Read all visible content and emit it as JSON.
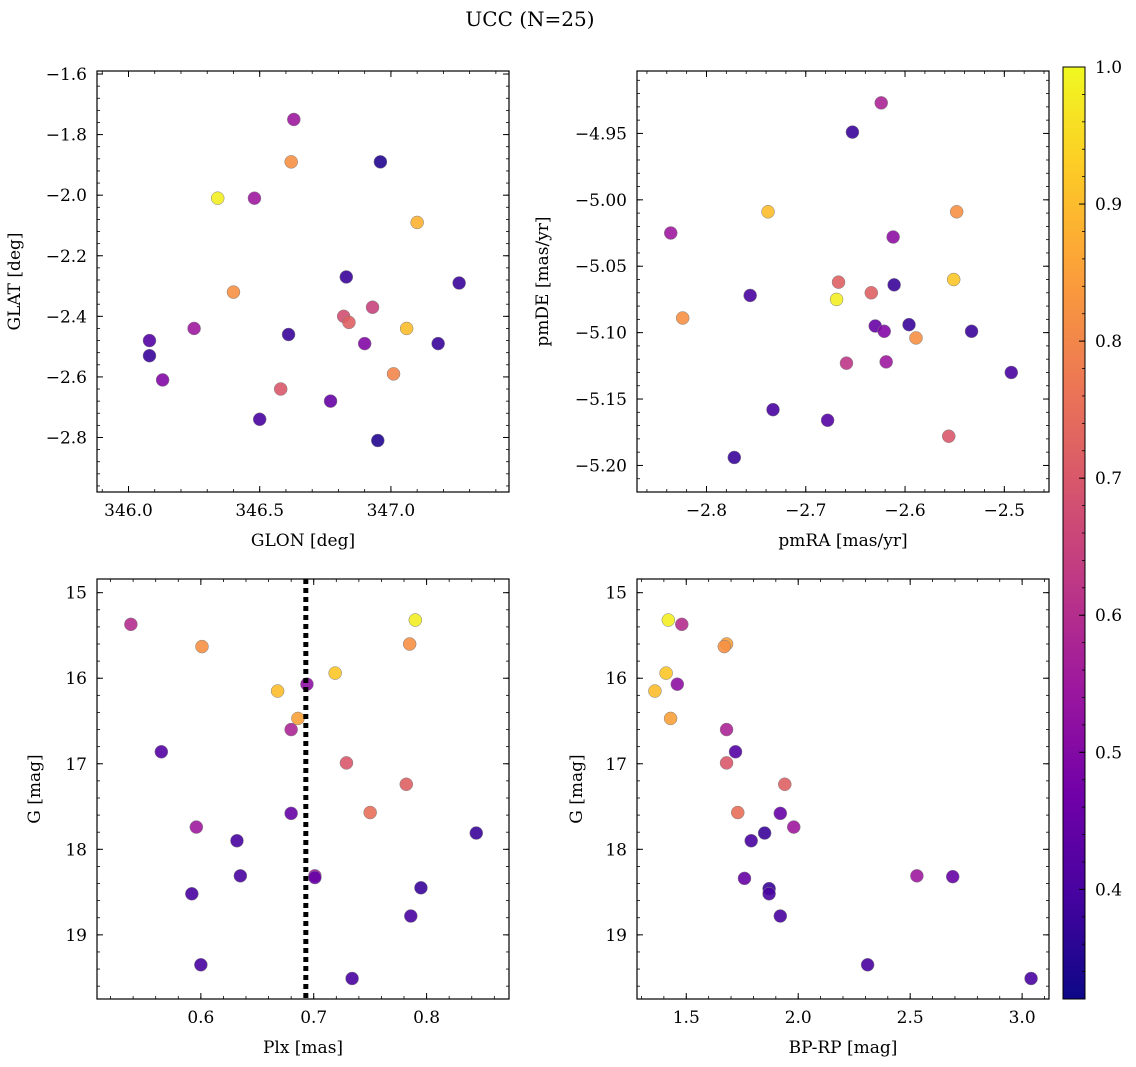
{
  "figure": {
    "title": "UCC (N=25)"
  },
  "colorbar": {
    "ticks": [
      "0.4",
      "0.5",
      "0.6",
      "0.7",
      "0.8",
      "0.9",
      "1.0"
    ],
    "range": [
      0.32,
      1.0
    ],
    "colormap": "plasma",
    "colormap_stops": [
      "#0d0887",
      "#46039f",
      "#7201a8",
      "#9c179e",
      "#bd3786",
      "#d8576b",
      "#ed7953",
      "#fb9f3a",
      "#fdca26",
      "#f0f921"
    ]
  },
  "chart_data": [
    {
      "type": "scatter",
      "panel": "top-left",
      "xlabel": "GLON [deg]",
      "ylabel": "GLAT [deg]",
      "xlim": [
        345.88,
        347.45
      ],
      "ylim": [
        -2.98,
        -1.59
      ],
      "xticks": [
        "346.0",
        "346.5",
        "347.0"
      ],
      "yticks": [
        "−1.6",
        "−1.8",
        "−2.0",
        "−2.2",
        "−2.4",
        "−2.6",
        "−2.8"
      ],
      "points": [
        {
          "x": 346.63,
          "y": -1.75,
          "c": 0.55
        },
        {
          "x": 346.96,
          "y": -1.89,
          "c": 0.35
        },
        {
          "x": 346.62,
          "y": -1.89,
          "c": 0.82
        },
        {
          "x": 346.34,
          "y": -2.01,
          "c": 0.98
        },
        {
          "x": 346.48,
          "y": -2.01,
          "c": 0.55
        },
        {
          "x": 347.1,
          "y": -2.09,
          "c": 0.88
        },
        {
          "x": 346.83,
          "y": -2.27,
          "c": 0.38
        },
        {
          "x": 347.26,
          "y": -2.29,
          "c": 0.38
        },
        {
          "x": 346.4,
          "y": -2.32,
          "c": 0.82
        },
        {
          "x": 346.82,
          "y": -2.4,
          "c": 0.68
        },
        {
          "x": 346.93,
          "y": -2.37,
          "c": 0.65
        },
        {
          "x": 346.84,
          "y": -2.42,
          "c": 0.72
        },
        {
          "x": 346.25,
          "y": -2.44,
          "c": 0.55
        },
        {
          "x": 347.06,
          "y": -2.44,
          "c": 0.9
        },
        {
          "x": 346.61,
          "y": -2.46,
          "c": 0.38
        },
        {
          "x": 346.08,
          "y": -2.48,
          "c": 0.42
        },
        {
          "x": 346.9,
          "y": -2.49,
          "c": 0.5
        },
        {
          "x": 347.18,
          "y": -2.49,
          "c": 0.38
        },
        {
          "x": 346.08,
          "y": -2.53,
          "c": 0.38
        },
        {
          "x": 347.01,
          "y": -2.59,
          "c": 0.8
        },
        {
          "x": 346.13,
          "y": -2.61,
          "c": 0.5
        },
        {
          "x": 346.58,
          "y": -2.64,
          "c": 0.7
        },
        {
          "x": 346.77,
          "y": -2.68,
          "c": 0.45
        },
        {
          "x": 346.5,
          "y": -2.74,
          "c": 0.4
        },
        {
          "x": 346.95,
          "y": -2.81,
          "c": 0.35
        }
      ]
    },
    {
      "type": "scatter",
      "panel": "top-right",
      "xlabel": "pmRA [mas/yr]",
      "ylabel": "pmDE [mas/yr]",
      "xlim": [
        -2.87,
        -2.455
      ],
      "ylim": [
        -5.22,
        -4.903
      ],
      "xticks": [
        "−2.8",
        "−2.7",
        "−2.6",
        "−2.5"
      ],
      "yticks": [
        "−4.95",
        "−5.00",
        "−5.05",
        "−5.10",
        "−5.15",
        "−5.20"
      ],
      "points": [
        {
          "x": -2.624,
          "y": -4.927,
          "c": 0.58
        },
        {
          "x": -2.653,
          "y": -4.949,
          "c": 0.38
        },
        {
          "x": -2.738,
          "y": -5.009,
          "c": 0.9
        },
        {
          "x": -2.548,
          "y": -5.009,
          "c": 0.82
        },
        {
          "x": -2.836,
          "y": -5.025,
          "c": 0.55
        },
        {
          "x": -2.612,
          "y": -5.028,
          "c": 0.52
        },
        {
          "x": -2.551,
          "y": -5.06,
          "c": 0.92
        },
        {
          "x": -2.667,
          "y": -5.062,
          "c": 0.72
        },
        {
          "x": -2.611,
          "y": -5.064,
          "c": 0.38
        },
        {
          "x": -2.634,
          "y": -5.07,
          "c": 0.72
        },
        {
          "x": -2.756,
          "y": -5.072,
          "c": 0.4
        },
        {
          "x": -2.669,
          "y": -5.075,
          "c": 0.98
        },
        {
          "x": -2.824,
          "y": -5.089,
          "c": 0.82
        },
        {
          "x": -2.63,
          "y": -5.095,
          "c": 0.45
        },
        {
          "x": -2.596,
          "y": -5.094,
          "c": 0.38
        },
        {
          "x": -2.621,
          "y": -5.099,
          "c": 0.5
        },
        {
          "x": -2.533,
          "y": -5.099,
          "c": 0.38
        },
        {
          "x": -2.589,
          "y": -5.104,
          "c": 0.82
        },
        {
          "x": -2.619,
          "y": -5.122,
          "c": 0.55
        },
        {
          "x": -2.659,
          "y": -5.123,
          "c": 0.62
        },
        {
          "x": -2.493,
          "y": -5.13,
          "c": 0.4
        },
        {
          "x": -2.733,
          "y": -5.158,
          "c": 0.4
        },
        {
          "x": -2.678,
          "y": -5.166,
          "c": 0.42
        },
        {
          "x": -2.556,
          "y": -5.178,
          "c": 0.7
        },
        {
          "x": -2.772,
          "y": -5.194,
          "c": 0.38
        }
      ]
    },
    {
      "type": "scatter",
      "panel": "bottom-left",
      "xlabel": "Plx [mas]",
      "ylabel": "G [mag]",
      "xlim": [
        0.508,
        0.873
      ],
      "ylim": [
        19.75,
        14.84
      ],
      "y_inverted": true,
      "xticks": [
        "0.6",
        "0.7",
        "0.8"
      ],
      "yticks": [
        "15",
        "16",
        "17",
        "18",
        "19"
      ],
      "vline": {
        "x": 0.693,
        "style": "dotted",
        "color": "#000000"
      },
      "points": [
        {
          "x": 0.538,
          "y": 15.37,
          "c": 0.6
        },
        {
          "x": 0.601,
          "y": 15.63,
          "c": 0.82
        },
        {
          "x": 0.79,
          "y": 15.32,
          "c": 0.98
        },
        {
          "x": 0.785,
          "y": 15.6,
          "c": 0.82
        },
        {
          "x": 0.719,
          "y": 15.94,
          "c": 0.92
        },
        {
          "x": 0.668,
          "y": 16.15,
          "c": 0.9
        },
        {
          "x": 0.694,
          "y": 16.07,
          "c": 0.52
        },
        {
          "x": 0.686,
          "y": 16.47,
          "c": 0.85
        },
        {
          "x": 0.68,
          "y": 16.6,
          "c": 0.58
        },
        {
          "x": 0.565,
          "y": 16.86,
          "c": 0.42
        },
        {
          "x": 0.729,
          "y": 16.99,
          "c": 0.7
        },
        {
          "x": 0.782,
          "y": 17.24,
          "c": 0.72
        },
        {
          "x": 0.75,
          "y": 17.57,
          "c": 0.75
        },
        {
          "x": 0.68,
          "y": 17.58,
          "c": 0.45
        },
        {
          "x": 0.596,
          "y": 17.74,
          "c": 0.55
        },
        {
          "x": 0.844,
          "y": 17.81,
          "c": 0.38
        },
        {
          "x": 0.632,
          "y": 17.9,
          "c": 0.4
        },
        {
          "x": 0.635,
          "y": 18.31,
          "c": 0.4
        },
        {
          "x": 0.701,
          "y": 18.31,
          "c": 0.55
        },
        {
          "x": 0.701,
          "y": 18.33,
          "c": 0.45
        },
        {
          "x": 0.795,
          "y": 18.45,
          "c": 0.38
        },
        {
          "x": 0.592,
          "y": 18.52,
          "c": 0.4
        },
        {
          "x": 0.786,
          "y": 18.78,
          "c": 0.4
        },
        {
          "x": 0.6,
          "y": 19.35,
          "c": 0.4
        },
        {
          "x": 0.734,
          "y": 19.51,
          "c": 0.4
        }
      ]
    },
    {
      "type": "scatter",
      "panel": "bottom-right",
      "xlabel": "BP-RP [mag]",
      "ylabel": "G [mag]",
      "xlim": [
        1.28,
        3.12
      ],
      "ylim": [
        19.75,
        14.84
      ],
      "y_inverted": true,
      "xticks": [
        "1.5",
        "2.0",
        "2.5",
        "3.0"
      ],
      "yticks": [
        "15",
        "16",
        "17",
        "18",
        "19"
      ],
      "points": [
        {
          "x": 1.42,
          "y": 15.32,
          "c": 0.98
        },
        {
          "x": 1.48,
          "y": 15.37,
          "c": 0.6
        },
        {
          "x": 1.68,
          "y": 15.6,
          "c": 0.85
        },
        {
          "x": 1.67,
          "y": 15.63,
          "c": 0.82
        },
        {
          "x": 1.41,
          "y": 15.94,
          "c": 0.92
        },
        {
          "x": 1.46,
          "y": 16.07,
          "c": 0.52
        },
        {
          "x": 1.36,
          "y": 16.15,
          "c": 0.9
        },
        {
          "x": 1.43,
          "y": 16.47,
          "c": 0.85
        },
        {
          "x": 1.68,
          "y": 16.6,
          "c": 0.58
        },
        {
          "x": 1.72,
          "y": 16.86,
          "c": 0.42
        },
        {
          "x": 1.68,
          "y": 16.99,
          "c": 0.7
        },
        {
          "x": 1.94,
          "y": 17.24,
          "c": 0.72
        },
        {
          "x": 1.73,
          "y": 17.57,
          "c": 0.75
        },
        {
          "x": 1.92,
          "y": 17.58,
          "c": 0.45
        },
        {
          "x": 1.98,
          "y": 17.74,
          "c": 0.55
        },
        {
          "x": 1.85,
          "y": 17.81,
          "c": 0.38
        },
        {
          "x": 1.79,
          "y": 17.9,
          "c": 0.4
        },
        {
          "x": 1.76,
          "y": 18.34,
          "c": 0.45
        },
        {
          "x": 2.53,
          "y": 18.31,
          "c": 0.55
        },
        {
          "x": 2.69,
          "y": 18.32,
          "c": 0.45
        },
        {
          "x": 1.87,
          "y": 18.46,
          "c": 0.38
        },
        {
          "x": 1.87,
          "y": 18.52,
          "c": 0.4
        },
        {
          "x": 1.92,
          "y": 18.78,
          "c": 0.4
        },
        {
          "x": 2.31,
          "y": 19.35,
          "c": 0.4
        },
        {
          "x": 3.04,
          "y": 19.51,
          "c": 0.4
        }
      ]
    }
  ]
}
